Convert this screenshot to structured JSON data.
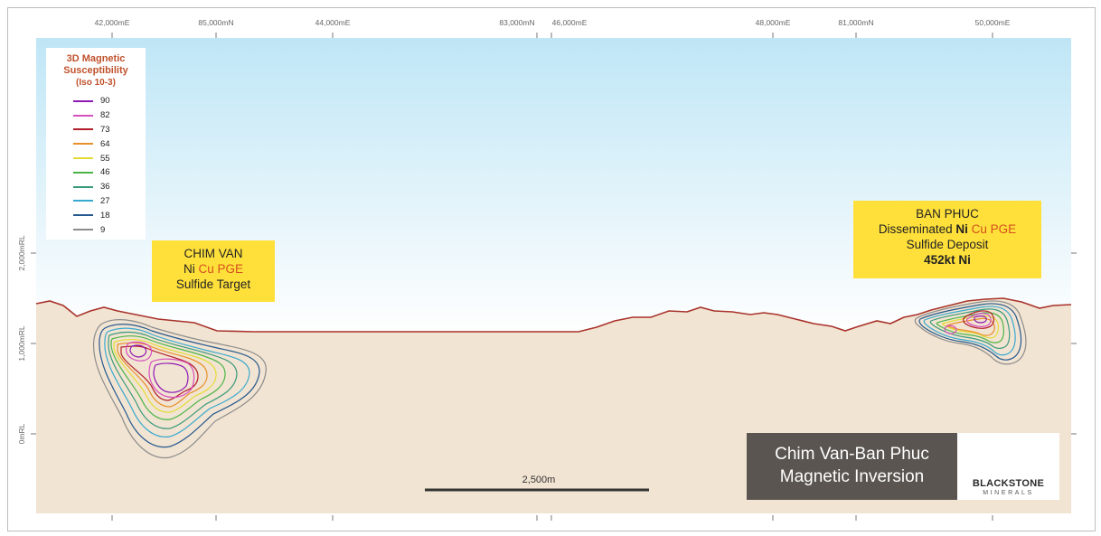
{
  "top_ticks": [
    {
      "label": "42,000mE",
      "major": true
    },
    {
      "label": "85,000mN",
      "major": true
    },
    {
      "label": "44,000mE",
      "major": true
    },
    {
      "label": "83,000mN",
      "major": true
    },
    {
      "label": "46,000mE",
      "major": true
    },
    {
      "label": "48,000mE",
      "major": true
    },
    {
      "label": "81,000mN",
      "major": true
    },
    {
      "label": "50,000mE",
      "major": true
    }
  ],
  "rl_labels": [
    "2,000mRL",
    "1,000mRL",
    "0mRL"
  ],
  "legend": {
    "title_lines": [
      "3D Magnetic",
      "Susceptibility"
    ],
    "subtitle": "(Iso 10-3)",
    "items": [
      {
        "value": "90",
        "color": "#8e1ab4"
      },
      {
        "value": "82",
        "color": "#d64fbf"
      },
      {
        "value": "73",
        "color": "#b21f2a"
      },
      {
        "value": "64",
        "color": "#e8912a"
      },
      {
        "value": "55",
        "color": "#e3dc38"
      },
      {
        "value": "46",
        "color": "#4ab547"
      },
      {
        "value": "36",
        "color": "#3a9a7c"
      },
      {
        "value": "27",
        "color": "#38a9d0"
      },
      {
        "value": "18",
        "color": "#25598e"
      },
      {
        "value": "9",
        "color": "#8c8c8c"
      }
    ]
  },
  "chim_van": {
    "title": "CHIM VAN",
    "ni": "Ni",
    "cu": "Cu",
    "pge": "PGE",
    "line3": "Sulfide Target"
  },
  "ban_phuc": {
    "title": "BAN PHUC",
    "line2_pre": "Disseminated",
    "ni": "Ni",
    "cu": "Cu",
    "pge": "PGE",
    "line3": "Sulfide Deposit",
    "line4": "452kt Ni"
  },
  "scale_bar": {
    "label": "2,500m"
  },
  "branding": {
    "title_line1": "Chim Van-Ban Phuc",
    "title_line2": "Magnetic Inversion",
    "company": "BLACKSTONE",
    "company_sub": "MINERALS"
  },
  "colors": {
    "sky_top": "#bfe6f6",
    "ground": "#f2e4d2",
    "terrain_line": "#a8332b",
    "callout": "#ffe03a",
    "cu_accent": "#d4501d",
    "brand_dark": "#5a5550"
  }
}
